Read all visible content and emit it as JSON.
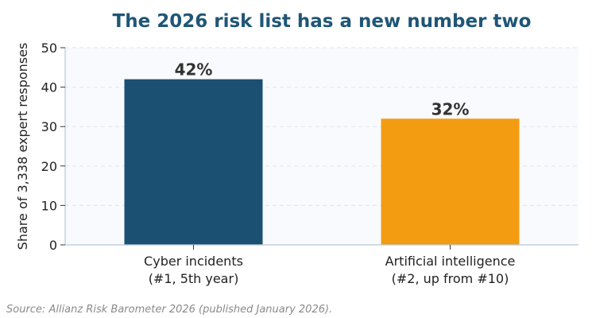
{
  "chart_data": {
    "type": "bar",
    "title": "The 2026 risk list has a new number two",
    "ylabel": "Share of 3,338 expert responses",
    "xlabel": "",
    "ylim": [
      0,
      50
    ],
    "yticks": [
      0,
      10,
      20,
      30,
      40,
      50
    ],
    "grid": true,
    "categories": [
      [
        "Cyber incidents",
        "(#1, 5th year)"
      ],
      [
        "Artificial intelligence",
        "(#2, up from #10)"
      ]
    ],
    "values": [
      42,
      32
    ],
    "value_labels": [
      "42%",
      "32%"
    ],
    "colors": [
      "#1b5072",
      "#f39c12"
    ]
  },
  "source": "Source: Allianz Risk Barometer 2026 (published January 2026)."
}
